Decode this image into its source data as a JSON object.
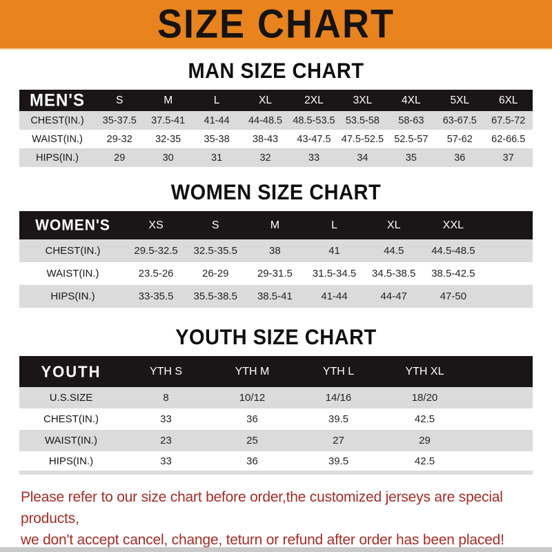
{
  "banner": {
    "title": "SIZE CHART"
  },
  "colors": {
    "banner_bg": "#E8831E",
    "table_header_bg": "#1A1516",
    "row_stripe": "#DBDBDB",
    "footer_text": "#A62C26"
  },
  "sections": [
    {
      "id": "men",
      "title": "MAN SIZE CHART",
      "header_label": "MEN'S",
      "columns": [
        "S",
        "M",
        "L",
        "XL",
        "2XL",
        "3XL",
        "4XL",
        "5XL",
        "6XL"
      ],
      "rows": [
        {
          "label": "CHEST(IN.)",
          "values": [
            "35-37.5",
            "37.5-41",
            "41-44",
            "44-48.5",
            "48.5-53.5",
            "53.5-58",
            "58-63",
            "63-67.5",
            "67.5-72"
          ]
        },
        {
          "label": "WAIST(IN.)",
          "values": [
            "29-32",
            "32-35",
            "35-38",
            "38-43",
            "43-47.5",
            "47.5-52.5",
            "52.5-57",
            "57-62",
            "62-66.5"
          ]
        },
        {
          "label": "HIPS(IN.)",
          "values": [
            "29",
            "30",
            "31",
            "32",
            "33",
            "34",
            "35",
            "36",
            "37"
          ]
        }
      ]
    },
    {
      "id": "women",
      "title": "WOMEN SIZE CHART",
      "header_label": "WOMEN'S",
      "columns": [
        "XS",
        "S",
        "M",
        "L",
        "XL",
        "XXL"
      ],
      "rows": [
        {
          "label": "CHEST(IN.)",
          "values": [
            "29.5-32.5",
            "32.5-35.5",
            "38",
            "41",
            "44.5",
            "44.5-48.5"
          ]
        },
        {
          "label": "WAIST(IN.)",
          "values": [
            "23.5-26",
            "26-29",
            "29-31.5",
            "31.5-34.5",
            "34.5-38.5",
            "38.5-42.5"
          ]
        },
        {
          "label": "HIPS(IN.)",
          "values": [
            "33-35.5",
            "35.5-38.5",
            "38.5-41",
            "41-44",
            "44-47",
            "47-50"
          ]
        }
      ]
    },
    {
      "id": "youth",
      "title": "YOUTH SIZE CHART",
      "header_label": "YOUTH",
      "columns": [
        "YTH S",
        "YTH M",
        "YTH L",
        "YTH XL"
      ],
      "rows": [
        {
          "label": "U.S.SIZE",
          "values": [
            "8",
            "10/12",
            "14/16",
            "18/20"
          ]
        },
        {
          "label": "CHEST(IN.)",
          "values": [
            "33",
            "36",
            "39.5",
            "42.5"
          ]
        },
        {
          "label": "WAIST(IN.)",
          "values": [
            "23",
            "25",
            "27",
            "29"
          ]
        },
        {
          "label": "HIPS(IN.)",
          "values": [
            "33",
            "36",
            "39.5",
            "42.5"
          ]
        }
      ]
    }
  ],
  "footer": {
    "lines": [
      "Please refer to our size chart before order,the customized jerseys are special products,",
      "we don't accept cancel, change, teturn or refund after order has been placed!"
    ]
  }
}
